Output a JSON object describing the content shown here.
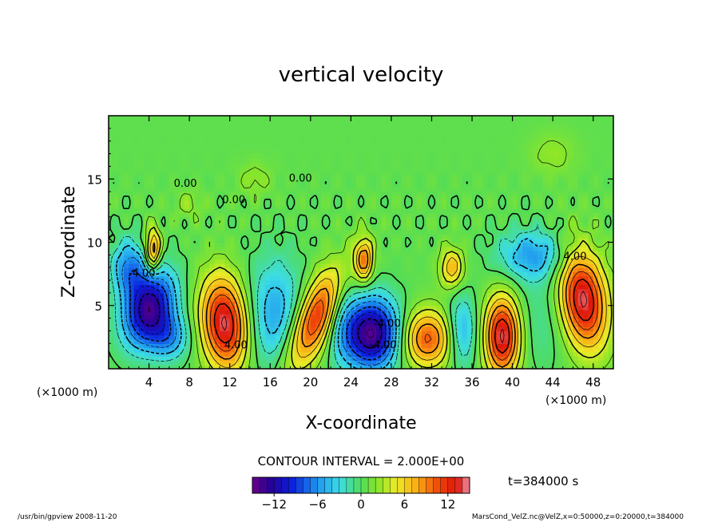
{
  "chart_data": {
    "type": "heatmap",
    "title": "vertical velocity",
    "xlabel": "X-coordinate",
    "ylabel": "Z-coordinate",
    "x_unit": "(×1000 m)",
    "z_unit": "(×1000 m)",
    "xlim": [
      0,
      50
    ],
    "ylim": [
      0,
      20
    ],
    "x_ticks": [
      4,
      8,
      12,
      16,
      20,
      24,
      28,
      32,
      36,
      40,
      44,
      48
    ],
    "y_ticks": [
      5,
      10,
      15
    ],
    "contour_interval_text": "CONTOUR INTERVAL = 2.000E+00",
    "time_text": "t=384000 s",
    "colorbar": {
      "range": [
        -15,
        15
      ],
      "ticks": [
        -12,
        -6,
        0,
        6,
        12
      ],
      "tick_labels": [
        "−12",
        "−6",
        "0",
        "6",
        "12"
      ]
    },
    "contour_labels": [
      {
        "text": "0.00",
        "x": 7.6,
        "z": 14.4
      },
      {
        "text": "0.00",
        "x": 19.0,
        "z": 14.8
      },
      {
        "text": "0.00",
        "x": 12.4,
        "z": 13.1
      },
      {
        "text": "-4.00",
        "x": 3.3,
        "z": 7.3
      },
      {
        "text": "4.00",
        "x": 12.6,
        "z": 1.6
      },
      {
        "text": "-4.00",
        "x": 27.2,
        "z": 1.6
      },
      {
        "text": "-4.00",
        "x": 27.6,
        "z": 3.3
      },
      {
        "text": "4.00",
        "x": 46.2,
        "z": 8.6
      }
    ],
    "features": [
      {
        "x": 4.0,
        "z": 4.8,
        "amp": -14,
        "sx": 1.6,
        "sz": 2.2,
        "rot": -0.5
      },
      {
        "x": 6.0,
        "z": 2.5,
        "amp": -6,
        "sx": 1.4,
        "sz": 1.3,
        "rot": 0
      },
      {
        "x": 2.0,
        "z": 8.0,
        "amp": -7,
        "sx": 1.2,
        "sz": 1.6,
        "rot": 0
      },
      {
        "x": 4.4,
        "z": 9.4,
        "amp": 10,
        "sx": 0.5,
        "sz": 1.2,
        "rot": 0
      },
      {
        "x": 11.5,
        "z": 3.6,
        "amp": 14,
        "sx": 1.6,
        "sz": 2.6,
        "rot": 0.15
      },
      {
        "x": 16.5,
        "z": 4.2,
        "amp": -6,
        "sx": 2.0,
        "sz": 3.2,
        "rot": 0
      },
      {
        "x": 20.5,
        "z": 4.0,
        "amp": 12,
        "sx": 1.3,
        "sz": 3.4,
        "rot": -0.55
      },
      {
        "x": 26.0,
        "z": 2.8,
        "amp": -15,
        "sx": 2.0,
        "sz": 2.0,
        "rot": 0
      },
      {
        "x": 25.3,
        "z": 8.6,
        "amp": 9,
        "sx": 0.6,
        "sz": 1.2,
        "rot": 0
      },
      {
        "x": 31.5,
        "z": 2.4,
        "amp": 10,
        "sx": 1.8,
        "sz": 1.6,
        "rot": 0
      },
      {
        "x": 35.0,
        "z": 3.0,
        "amp": -6,
        "sx": 1.0,
        "sz": 2.0,
        "rot": 0
      },
      {
        "x": 34.0,
        "z": 8.0,
        "amp": 7,
        "sx": 0.8,
        "sz": 1.1,
        "rot": 0
      },
      {
        "x": 39.0,
        "z": 2.6,
        "amp": 14,
        "sx": 1.2,
        "sz": 2.2,
        "rot": 0
      },
      {
        "x": 42.0,
        "z": 9.0,
        "amp": -6,
        "sx": 2.5,
        "sz": 1.4,
        "rot": 0
      },
      {
        "x": 47.0,
        "z": 5.5,
        "amp": 14,
        "sx": 1.6,
        "sz": 2.8,
        "rot": 0.2
      },
      {
        "x": 43.0,
        "z": 4.0,
        "amp": -2,
        "sx": 1.8,
        "sz": 3.0,
        "rot": 0
      },
      {
        "x": 23.0,
        "z": 5.0,
        "amp": -3,
        "sx": 1.0,
        "sz": 3.0,
        "rot": 0
      },
      {
        "x": 14.5,
        "z": 15.0,
        "amp": 2,
        "sx": 1.2,
        "sz": 1.0,
        "rot": 0
      },
      {
        "x": 44.0,
        "z": 17.0,
        "amp": 2,
        "sx": 1.6,
        "sz": 1.2,
        "rot": 0
      },
      {
        "x": 8.0,
        "z": 13.0,
        "amp": 2,
        "sx": 1.0,
        "sz": 0.8,
        "rot": 0
      }
    ]
  },
  "footer": {
    "left_text": "/usr/bin/gpview   2008-11-20",
    "right_text": "MarsCond_VelZ.nc@VelZ,x=0:50000,z=0:20000,t=384000"
  }
}
